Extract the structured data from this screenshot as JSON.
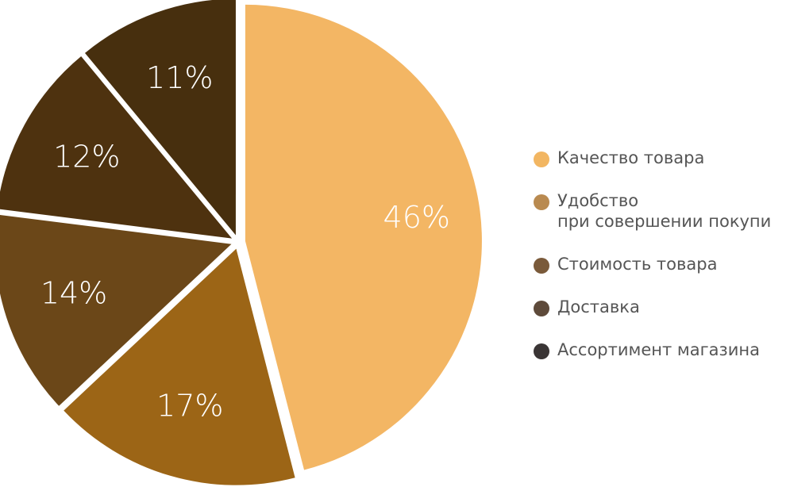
{
  "chart_data": {
    "type": "pie",
    "categories": [
      "Качество товара",
      "Удобство\nпри совершении покупи",
      "Стоимость товара",
      "Доставка",
      "Ассортимент магазина"
    ],
    "values": [
      46,
      17,
      14,
      12,
      11
    ],
    "value_labels": [
      "46%",
      "17%",
      "14%",
      "12%",
      "11%"
    ],
    "colors": [
      "#f3b664",
      "#9c6516",
      "#6b4718",
      "#4e320f",
      "#472f0e"
    ],
    "legend_colors": [
      "#f2b662",
      "#b98a50",
      "#7a5a3a",
      "#5e4a3a",
      "#3a3535"
    ],
    "legend": "right"
  }
}
